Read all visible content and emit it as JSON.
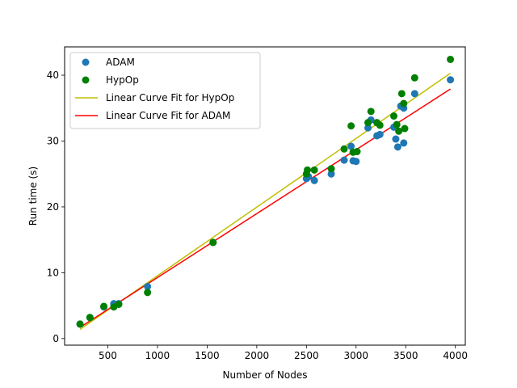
{
  "chart_data": {
    "type": "scatter",
    "title": "",
    "xlabel": "Number of Nodes",
    "ylabel": "Run time (s)",
    "xlim": [
      65,
      4100
    ],
    "ylim": [
      -1,
      44.3
    ],
    "xticks": [
      500,
      1000,
      1500,
      2000,
      2500,
      3000,
      3500,
      4000
    ],
    "yticks": [
      0,
      10,
      20,
      30,
      40
    ],
    "grid": false,
    "legend_position": "upper-left",
    "series": [
      {
        "name": "ADAM",
        "kind": "scatter",
        "color": "#1f77b4",
        "points": [
          [
            220,
            2.2
          ],
          [
            320,
            3.2
          ],
          [
            460,
            4.8
          ],
          [
            560,
            5.3
          ],
          [
            610,
            5.3
          ],
          [
            900,
            7.9
          ],
          [
            1560,
            14.6
          ],
          [
            2500,
            24.3
          ],
          [
            2520,
            24.6
          ],
          [
            2580,
            24.0
          ],
          [
            2750,
            25.0
          ],
          [
            2880,
            27.1
          ],
          [
            2950,
            29.2
          ],
          [
            2970,
            27.0
          ],
          [
            3000,
            26.9
          ],
          [
            3120,
            32.0
          ],
          [
            3150,
            33.2
          ],
          [
            3210,
            30.8
          ],
          [
            3240,
            31.0
          ],
          [
            3380,
            32.1
          ],
          [
            3400,
            30.3
          ],
          [
            3420,
            29.1
          ],
          [
            3450,
            35.3
          ],
          [
            3480,
            35.0
          ],
          [
            3480,
            29.7
          ],
          [
            3590,
            37.2
          ],
          [
            3950,
            39.3
          ]
        ]
      },
      {
        "name": "HypOp",
        "kind": "scatter",
        "color": "#008000",
        "points": [
          [
            220,
            2.2
          ],
          [
            320,
            3.2
          ],
          [
            460,
            4.9
          ],
          [
            560,
            4.8
          ],
          [
            610,
            5.2
          ],
          [
            900,
            7.0
          ],
          [
            1560,
            14.6
          ],
          [
            2500,
            25.0
          ],
          [
            2510,
            25.6
          ],
          [
            2580,
            25.6
          ],
          [
            2750,
            25.8
          ],
          [
            2880,
            28.8
          ],
          [
            2950,
            32.3
          ],
          [
            2970,
            28.3
          ],
          [
            3010,
            28.4
          ],
          [
            3120,
            32.8
          ],
          [
            3150,
            34.5
          ],
          [
            3210,
            32.8
          ],
          [
            3240,
            32.4
          ],
          [
            3380,
            33.8
          ],
          [
            3410,
            32.5
          ],
          [
            3430,
            31.5
          ],
          [
            3460,
            37.2
          ],
          [
            3480,
            35.7
          ],
          [
            3490,
            31.9
          ],
          [
            3590,
            39.6
          ],
          [
            3950,
            42.4
          ]
        ]
      },
      {
        "name": "Linear Curve Fit for HypOp",
        "kind": "line",
        "color": "#bfbf00",
        "points": [
          [
            220,
            1.4
          ],
          [
            3950,
            40.3
          ]
        ]
      },
      {
        "name": "Linear Curve Fit for ADAM",
        "kind": "line",
        "color": "#ff0000",
        "points": [
          [
            220,
            1.7
          ],
          [
            3950,
            37.9
          ]
        ]
      }
    ]
  }
}
